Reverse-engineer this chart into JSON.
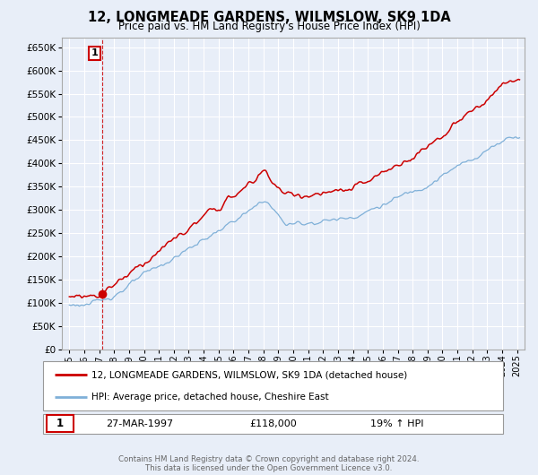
{
  "title": "12, LONGMEADE GARDENS, WILMSLOW, SK9 1DA",
  "subtitle": "Price paid vs. HM Land Registry's House Price Index (HPI)",
  "bg_color": "#e8eef8",
  "plot_bg_color": "#e8eef8",
  "red_line_label": "12, LONGMEADE GARDENS, WILMSLOW, SK9 1DA (detached house)",
  "blue_line_label": "HPI: Average price, detached house, Cheshire East",
  "sale_date": "27-MAR-1997",
  "sale_price": "£118,000",
  "sale_annotation": "19% ↑ HPI",
  "sale_marker_x": 1997.23,
  "sale_marker_y": 118000,
  "vline_x": 1997.23,
  "annotation_number": "1",
  "ytick_vals": [
    0,
    50000,
    100000,
    150000,
    200000,
    250000,
    300000,
    350000,
    400000,
    450000,
    500000,
    550000,
    600000,
    650000
  ],
  "ylim": [
    0,
    670000
  ],
  "xlim": [
    1994.5,
    2025.5
  ],
  "xtick_years": [
    1995,
    1996,
    1997,
    1998,
    1999,
    2000,
    2001,
    2002,
    2003,
    2004,
    2005,
    2006,
    2007,
    2008,
    2009,
    2010,
    2011,
    2012,
    2013,
    2014,
    2015,
    2016,
    2017,
    2018,
    2019,
    2020,
    2021,
    2022,
    2023,
    2024,
    2025
  ],
  "grid_color": "#ffffff",
  "red_color": "#cc0000",
  "blue_color": "#7fb0d8",
  "footnote": "Contains HM Land Registry data © Crown copyright and database right 2024.\nThis data is licensed under the Open Government Licence v3.0.",
  "legend_border_color": "#aaaaaa"
}
